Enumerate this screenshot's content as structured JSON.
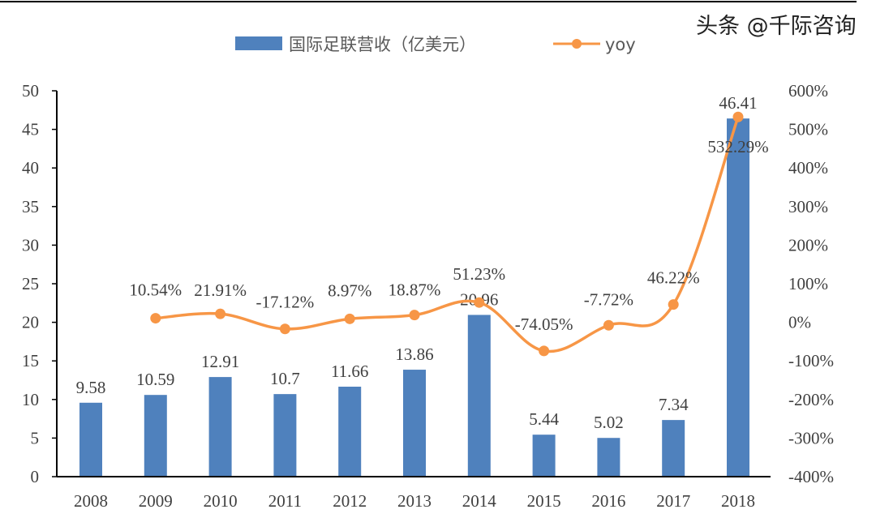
{
  "chart_data": {
    "type": "bar+line",
    "categories": [
      "2008",
      "2009",
      "2010",
      "2011",
      "2012",
      "2013",
      "2014",
      "2015",
      "2016",
      "2017",
      "2018"
    ],
    "series": [
      {
        "name": "国际足联营收（亿美元）",
        "type": "bar",
        "axis": "left",
        "color": "#4f81bd",
        "values": [
          9.58,
          10.59,
          12.91,
          10.7,
          11.66,
          13.86,
          20.96,
          5.44,
          5.02,
          7.34,
          46.41
        ],
        "labels": [
          "9.58",
          "10.59",
          "12.91",
          "10.7",
          "11.66",
          "13.86",
          "20.96",
          "5.44",
          "5.02",
          "7.34",
          "46.41"
        ]
      },
      {
        "name": "yoy",
        "type": "line",
        "axis": "right",
        "color": "#f79646",
        "values": [
          null,
          10.54,
          21.91,
          -17.12,
          8.97,
          18.87,
          51.23,
          -74.05,
          -7.72,
          46.22,
          532.29
        ],
        "labels": [
          "",
          "10.54%",
          "21.91%",
          "-17.12%",
          "8.97%",
          "18.87%",
          "51.23%",
          "-74.05%",
          "-7.72%",
          "46.22%",
          "532.29%"
        ]
      }
    ],
    "left_axis": {
      "ylim": [
        0,
        50
      ],
      "ticks": [
        "0",
        "5",
        "10",
        "15",
        "20",
        "25",
        "30",
        "35",
        "40",
        "45",
        "50"
      ]
    },
    "right_axis": {
      "ylim": [
        -400,
        600
      ],
      "ticks": [
        "-400%",
        "-300%",
        "-200%",
        "-100%",
        "0%",
        "100%",
        "200%",
        "300%",
        "400%",
        "500%",
        "600%"
      ]
    },
    "legend_position": "top",
    "grid": false
  },
  "watermark": "头条 @千际咨询"
}
